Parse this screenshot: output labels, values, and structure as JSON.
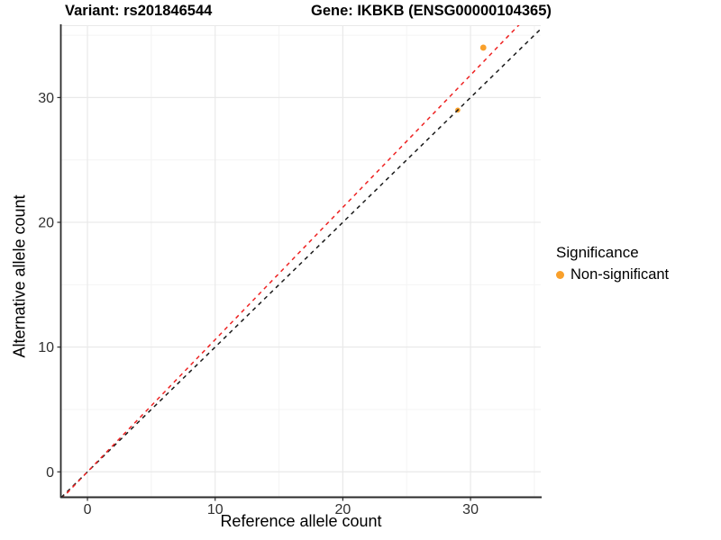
{
  "header": {
    "variant_title": "Variant: rs201846544",
    "gene_title": "Gene: IKBKB (ENSG00000104365)"
  },
  "axes": {
    "x_label": "Reference allele count",
    "y_label": "Alternative allele count"
  },
  "legend": {
    "title": "Significance",
    "items": [
      {
        "label": "Non-significant",
        "color": "#F9A02B"
      }
    ]
  },
  "colors": {
    "background": "#FFFFFF",
    "grid_major": "#E9E9E9",
    "grid_minor": "#F4F4F4",
    "axis_line": "#2B2B2B",
    "tick_label": "#303030",
    "point_orange": "#F9A02B",
    "identity_line": "#1A1A1A",
    "ratio_line": "#EE2222"
  },
  "chart_data": {
    "type": "scatter",
    "title": "Variant: rs201846544 | Gene: IKBKB (ENSG00000104365)",
    "xlabel": "Reference allele count",
    "ylabel": "Alternative allele count",
    "xlim": [
      -2.05,
      35.5
    ],
    "ylim": [
      -2.0,
      35.8
    ],
    "x_ticks": [
      0,
      10,
      20,
      30
    ],
    "y_ticks": [
      0,
      10,
      20,
      30
    ],
    "x_minor_ticks": [
      5,
      15,
      25,
      35
    ],
    "y_minor_ticks": [
      5,
      15,
      25,
      35
    ],
    "grid": true,
    "legend_position": "right",
    "legend_title": "Significance",
    "series": [
      {
        "name": "Non-significant",
        "color": "#F9A02B",
        "points": [
          {
            "x": 31,
            "y": 34,
            "r": 3.4
          },
          {
            "x": 29,
            "y": 29,
            "r": 2.8
          }
        ]
      }
    ],
    "lines": [
      {
        "name": "identity-line",
        "slope": 1.0,
        "intercept": 0,
        "style": "dashed",
        "color": "#1A1A1A"
      },
      {
        "name": "expected-ratio-line",
        "slope": 1.06,
        "intercept": 0,
        "style": "dashed",
        "color": "#EE2222"
      }
    ]
  }
}
